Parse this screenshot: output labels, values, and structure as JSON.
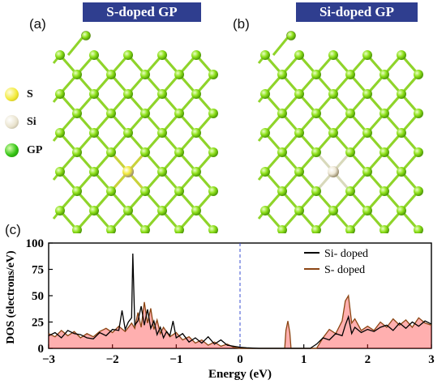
{
  "panels": {
    "a": {
      "label": "(a)",
      "title": "S-doped GP"
    },
    "b": {
      "label": "(b)",
      "title": "Si-doped GP"
    },
    "c": {
      "label": "(c)"
    }
  },
  "atom_legend": [
    {
      "label": "S",
      "color": "#f2ea3a"
    },
    {
      "label": "Si",
      "color": "#eae4cf"
    },
    {
      "label": "GP",
      "color": "#34c414"
    }
  ],
  "colors": {
    "gp_atom": "#8ee01a",
    "gp_bond": "#8fd42a",
    "s_atom": "#f2ea3a",
    "si_atom": "#efe9d7",
    "title_bg": "#2f3e8f",
    "si_line": "#000000",
    "s_line": "#8b4513",
    "s_fill": "#ff1a1a"
  },
  "chart_data": {
    "type": "line",
    "xlabel": "Energy (eV)",
    "ylabel": "DOS (electrons/eV)",
    "xlim": [
      -3,
      3
    ],
    "ylim": [
      0,
      100
    ],
    "xticks": [
      "−3",
      "−2",
      "−1",
      "0",
      "1",
      "2",
      "3"
    ],
    "yticks": [
      "0",
      "25",
      "50",
      "75",
      "100"
    ],
    "fermi_level": 0,
    "legend_position": "top-center",
    "series": [
      {
        "name": "Si- doped",
        "color": "#000000",
        "points": [
          [
            -3.0,
            12
          ],
          [
            -2.9,
            15
          ],
          [
            -2.8,
            10
          ],
          [
            -2.7,
            17
          ],
          [
            -2.6,
            14
          ],
          [
            -2.5,
            13
          ],
          [
            -2.4,
            10
          ],
          [
            -2.3,
            9
          ],
          [
            -2.2,
            15
          ],
          [
            -2.1,
            12
          ],
          [
            -2.0,
            18
          ],
          [
            -1.9,
            17
          ],
          [
            -1.85,
            36
          ],
          [
            -1.8,
            18
          ],
          [
            -1.75,
            25
          ],
          [
            -1.7,
            29
          ],
          [
            -1.68,
            90
          ],
          [
            -1.65,
            22
          ],
          [
            -1.6,
            26
          ],
          [
            -1.55,
            40
          ],
          [
            -1.5,
            22
          ],
          [
            -1.45,
            37
          ],
          [
            -1.4,
            19
          ],
          [
            -1.35,
            26
          ],
          [
            -1.3,
            13
          ],
          [
            -1.25,
            20
          ],
          [
            -1.2,
            10
          ],
          [
            -1.15,
            16
          ],
          [
            -1.1,
            12
          ],
          [
            -1.05,
            26
          ],
          [
            -1.0,
            10
          ],
          [
            -0.9,
            14
          ],
          [
            -0.8,
            6
          ],
          [
            -0.7,
            10
          ],
          [
            -0.6,
            5
          ],
          [
            -0.5,
            11
          ],
          [
            -0.4,
            4
          ],
          [
            -0.3,
            8
          ],
          [
            -0.2,
            3
          ],
          [
            -0.1,
            2
          ],
          [
            0.0,
            1
          ],
          [
            0.1,
            0.5
          ],
          [
            0.3,
            0
          ],
          [
            1.1,
            0
          ],
          [
            1.2,
            4
          ],
          [
            1.3,
            10
          ],
          [
            1.4,
            8
          ],
          [
            1.5,
            14
          ],
          [
            1.6,
            12
          ],
          [
            1.65,
            22
          ],
          [
            1.7,
            30
          ],
          [
            1.75,
            14
          ],
          [
            1.8,
            20
          ],
          [
            1.9,
            15
          ],
          [
            2.0,
            18
          ],
          [
            2.1,
            16
          ],
          [
            2.2,
            20
          ],
          [
            2.3,
            22
          ],
          [
            2.4,
            17
          ],
          [
            2.5,
            24
          ],
          [
            2.6,
            19
          ],
          [
            2.7,
            25
          ],
          [
            2.8,
            21
          ],
          [
            2.9,
            26
          ],
          [
            3.0,
            23
          ]
        ]
      },
      {
        "name": "S- doped",
        "color": "#8b4513",
        "points": [
          [
            -3.0,
            14
          ],
          [
            -2.9,
            11
          ],
          [
            -2.8,
            17
          ],
          [
            -2.7,
            12
          ],
          [
            -2.6,
            16
          ],
          [
            -2.5,
            10
          ],
          [
            -2.4,
            14
          ],
          [
            -2.3,
            11
          ],
          [
            -2.2,
            16
          ],
          [
            -2.1,
            19
          ],
          [
            -2.0,
            15
          ],
          [
            -1.9,
            21
          ],
          [
            -1.8,
            16
          ],
          [
            -1.7,
            24
          ],
          [
            -1.65,
            19
          ],
          [
            -1.6,
            34
          ],
          [
            -1.55,
            20
          ],
          [
            -1.5,
            44
          ],
          [
            -1.45,
            24
          ],
          [
            -1.4,
            38
          ],
          [
            -1.35,
            18
          ],
          [
            -1.3,
            27
          ],
          [
            -1.25,
            14
          ],
          [
            -1.2,
            20
          ],
          [
            -1.1,
            11
          ],
          [
            -1.0,
            15
          ],
          [
            -0.9,
            8
          ],
          [
            -0.8,
            11
          ],
          [
            -0.7,
            5
          ],
          [
            -0.6,
            8
          ],
          [
            -0.5,
            3
          ],
          [
            -0.4,
            6
          ],
          [
            -0.3,
            2
          ],
          [
            -0.2,
            4
          ],
          [
            -0.1,
            1
          ],
          [
            0.0,
            0
          ],
          [
            0.7,
            0
          ],
          [
            0.72,
            17
          ],
          [
            0.75,
            26
          ],
          [
            0.78,
            15
          ],
          [
            0.8,
            0
          ],
          [
            1.2,
            0
          ],
          [
            1.3,
            10
          ],
          [
            1.4,
            18
          ],
          [
            1.5,
            14
          ],
          [
            1.6,
            26
          ],
          [
            1.65,
            45
          ],
          [
            1.7,
            50
          ],
          [
            1.75,
            24
          ],
          [
            1.8,
            28
          ],
          [
            1.9,
            17
          ],
          [
            2.0,
            21
          ],
          [
            2.1,
            17
          ],
          [
            2.2,
            25
          ],
          [
            2.3,
            20
          ],
          [
            2.4,
            28
          ],
          [
            2.5,
            22
          ],
          [
            2.6,
            27
          ],
          [
            2.7,
            20
          ],
          [
            2.8,
            29
          ],
          [
            2.9,
            24
          ],
          [
            3.0,
            22
          ]
        ]
      }
    ]
  }
}
